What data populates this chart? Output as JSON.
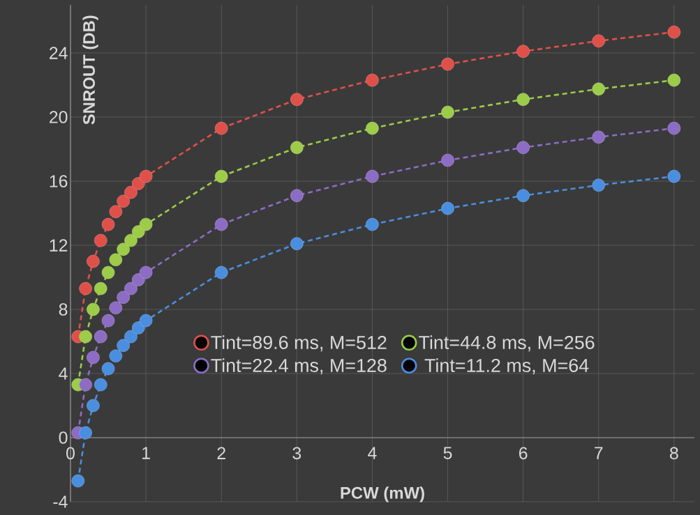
{
  "chart_data": {
    "type": "line",
    "xlabel": "PCW (mW)",
    "ylabel": "SNROUT (DB)",
    "x": [
      0.1,
      0.2,
      0.3,
      0.4,
      0.5,
      0.6,
      0.7,
      0.8,
      0.9,
      1,
      2,
      3,
      4,
      5,
      6,
      7,
      8
    ],
    "series": [
      {
        "name": "Tint=89.6 ms, M=512",
        "color": "#e0504a",
        "values": [
          6.3,
          9.3,
          11.0,
          12.3,
          13.3,
          14.1,
          14.75,
          15.3,
          15.85,
          16.3,
          19.3,
          21.1,
          22.3,
          23.3,
          24.1,
          24.75,
          25.3
        ]
      },
      {
        "name": "Tint=44.8 ms, M=256",
        "color": "#9ccc48",
        "values": [
          3.3,
          6.3,
          8.0,
          9.3,
          10.3,
          11.1,
          11.75,
          12.3,
          12.85,
          13.3,
          16.3,
          18.1,
          19.3,
          20.3,
          21.1,
          21.75,
          22.3
        ]
      },
      {
        "name": "Tint=22.4 ms, M=128",
        "color": "#8c6cc4",
        "values": [
          0.3,
          3.3,
          5.0,
          6.3,
          7.3,
          8.1,
          8.75,
          9.3,
          9.85,
          10.3,
          13.3,
          15.1,
          16.3,
          17.3,
          18.1,
          18.75,
          19.3
        ]
      },
      {
        "name": "Tint=11.2 ms, M=64",
        "color": "#4a8ee0",
        "values": [
          -2.7,
          0.3,
          2.0,
          3.3,
          4.3,
          5.1,
          5.75,
          6.3,
          6.85,
          7.3,
          10.3,
          12.1,
          13.3,
          14.3,
          15.1,
          15.75,
          16.3
        ]
      }
    ],
    "xlim": [
      0,
      8.27
    ],
    "ylim": [
      -4,
      27
    ],
    "xticks": [
      0,
      1,
      2,
      3,
      4,
      5,
      6,
      7,
      8
    ],
    "yticks": [
      -4,
      0,
      4,
      8,
      12,
      16,
      20,
      24
    ],
    "grid": true,
    "legend": "center",
    "marker": "circle",
    "line_style": "dashed"
  }
}
